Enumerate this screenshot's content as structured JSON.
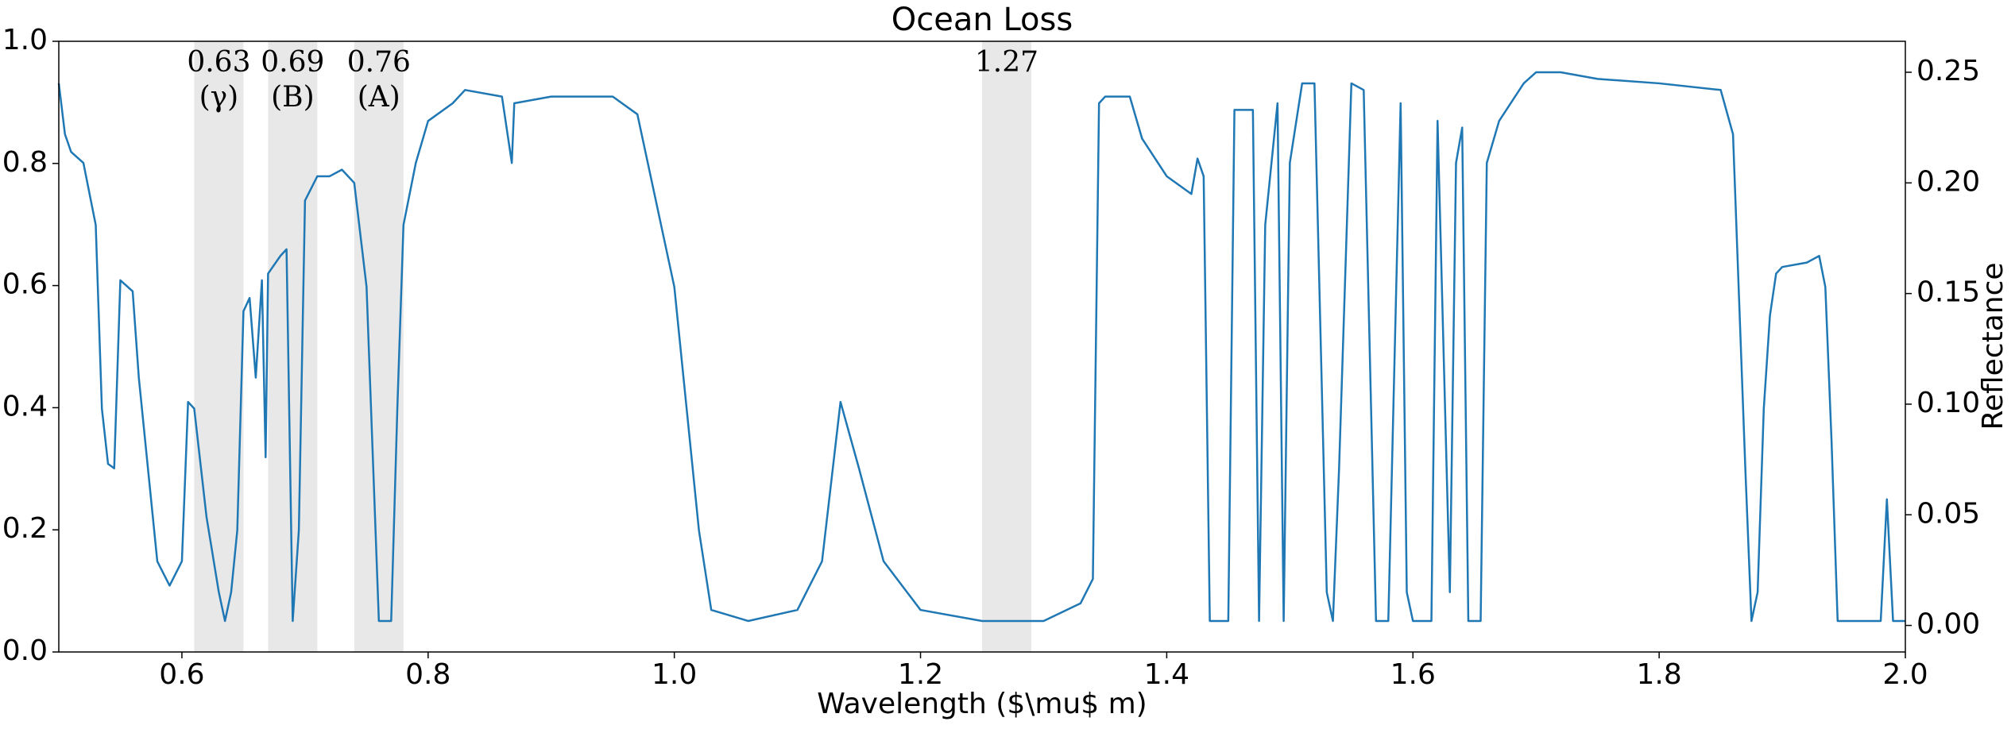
{
  "chart_data": {
    "type": "line",
    "title": "Ocean Loss",
    "x_label": "Wavelength ($\\mu$ m)",
    "y2_label": "Reflectance",
    "xlim": [
      0.5,
      2.0
    ],
    "xticks": [
      0.6,
      0.8,
      {
        "value": 1.0,
        "label": "1.0"
      },
      1.2,
      1.4,
      1.6,
      1.8,
      {
        "value": 2.0,
        "label": "2.0"
      }
    ],
    "ylim": [
      0,
      1
    ],
    "yticks": [
      {
        "value": 0,
        "label": "0.0"
      },
      0.2,
      0.4,
      0.6,
      0.8,
      {
        "value": 1,
        "label": "1.0"
      }
    ],
    "y2lim": [
      -0.012,
      0.264
    ],
    "y2ticks": [
      {
        "value": 0,
        "label": "0.00"
      },
      {
        "value": 0.05,
        "label": "0.05"
      },
      {
        "value": 0.1,
        "label": "0.10"
      },
      {
        "value": 0.15,
        "label": "0.15"
      },
      {
        "value": 0.2,
        "label": "0.20"
      },
      {
        "value": 0.25,
        "label": "0.25"
      }
    ],
    "bands": [
      {
        "range": [
          0.61,
          0.65
        ],
        "label": "0.63",
        "sublabel": "(γ)"
      },
      {
        "range": [
          0.67,
          0.71
        ],
        "label": "0.69",
        "sublabel": "(B)"
      },
      {
        "range": [
          0.74,
          0.78
        ],
        "label": "0.76",
        "sublabel": "(A)"
      },
      {
        "range": [
          1.25,
          1.29
        ],
        "label": "1.27"
      }
    ],
    "band_color": "#e8e8e8",
    "x": [
      0.5,
      0.505,
      0.51,
      0.52,
      0.53,
      0.535,
      0.54,
      0.545,
      0.55,
      0.56,
      0.565,
      0.58,
      0.59,
      0.6,
      0.605,
      0.61,
      0.62,
      0.63,
      0.635,
      0.64,
      0.645,
      0.65,
      0.655,
      0.66,
      0.665,
      0.668,
      0.67,
      0.68,
      0.685,
      0.69,
      0.695,
      0.7,
      0.71,
      0.72,
      0.73,
      0.74,
      0.75,
      0.76,
      0.77,
      0.775,
      0.78,
      0.79,
      0.8,
      0.82,
      0.83,
      0.86,
      0.868,
      0.87,
      0.9,
      0.95,
      0.97,
      1.0,
      1.02,
      1.03,
      1.06,
      1.1,
      1.12,
      1.135,
      1.15,
      1.17,
      1.2,
      1.25,
      1.3,
      1.33,
      1.34,
      1.345,
      1.35,
      1.37,
      1.38,
      1.4,
      1.42,
      1.425,
      1.43,
      1.435,
      1.45,
      1.455,
      1.47,
      1.475,
      1.48,
      1.49,
      1.495,
      1.5,
      1.51,
      1.52,
      1.53,
      1.535,
      1.54,
      1.55,
      1.56,
      1.57,
      1.58,
      1.59,
      1.595,
      1.6,
      1.615,
      1.62,
      1.63,
      1.635,
      1.64,
      1.645,
      1.655,
      1.66,
      1.67,
      1.69,
      1.7,
      1.72,
      1.75,
      1.8,
      1.85,
      1.86,
      1.87,
      1.875,
      1.88,
      1.885,
      1.89,
      1.895,
      1.9,
      1.92,
      1.93,
      1.935,
      1.94,
      1.945,
      1.98,
      1.985,
      1.99,
      2.0
    ],
    "series": [
      {
        "name": "Reflectance",
        "color": "#1f77b4",
        "axis": "y2",
        "values": [
          0.245,
          0.222,
          0.214,
          0.209,
          0.181,
          0.098,
          0.073,
          0.071,
          0.156,
          0.151,
          0.112,
          0.029,
          0.018,
          0.029,
          0.101,
          0.098,
          0.049,
          0.015,
          0.002,
          0.015,
          0.043,
          0.142,
          0.148,
          0.112,
          0.156,
          0.076,
          0.159,
          0.167,
          0.17,
          0.002,
          0.043,
          0.192,
          0.203,
          0.203,
          0.206,
          0.2,
          0.153,
          0.002,
          0.002,
          0.098,
          0.181,
          0.209,
          0.228,
          0.236,
          0.242,
          0.239,
          0.209,
          0.236,
          0.239,
          0.239,
          0.231,
          0.153,
          0.043,
          0.007,
          0.002,
          0.007,
          0.029,
          0.101,
          0.071,
          0.029,
          0.007,
          0.002,
          0.002,
          0.01,
          0.021,
          0.236,
          0.239,
          0.239,
          0.22,
          0.203,
          0.195,
          0.211,
          0.203,
          0.002,
          0.002,
          0.233,
          0.233,
          0.002,
          0.181,
          0.236,
          0.002,
          0.209,
          0.245,
          0.245,
          0.015,
          0.002,
          0.071,
          0.245,
          0.242,
          0.002,
          0.002,
          0.236,
          0.015,
          0.002,
          0.002,
          0.228,
          0.015,
          0.209,
          0.225,
          0.002,
          0.002,
          0.209,
          0.228,
          0.245,
          0.25,
          0.25,
          0.247,
          0.245,
          0.242,
          0.222,
          0.071,
          0.002,
          0.015,
          0.098,
          0.14,
          0.159,
          0.162,
          0.164,
          0.167,
          0.153,
          0.084,
          0.002,
          0.002,
          0.057,
          0.002,
          0.002
        ]
      }
    ]
  }
}
